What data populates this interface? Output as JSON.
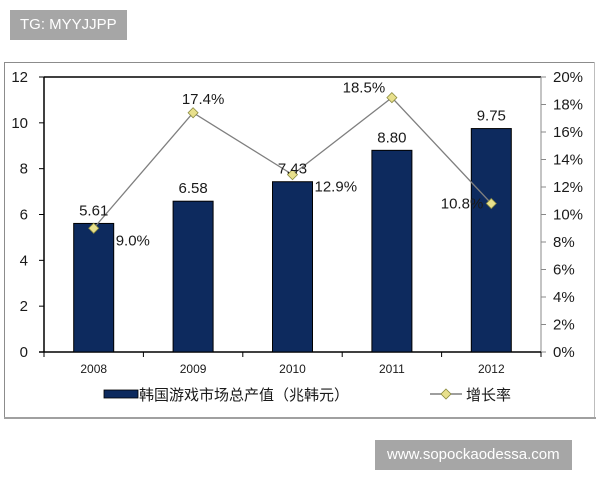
{
  "watermarks": {
    "top": "TG: MYYJJPP",
    "bottom": "www.sopockaodessa.com"
  },
  "colors": {
    "bar": "#0d2a5e",
    "bar_border": "#000000",
    "line": "#7f7f7f",
    "marker": "#e8e08c",
    "marker_border": "#8a8a40",
    "badge_bg": "#a6a6a6"
  },
  "chart_data": {
    "type": "bar+line",
    "title": "",
    "categories": [
      "2008",
      "2009",
      "2010",
      "2011",
      "2012"
    ],
    "series": [
      {
        "name": "韩国游戏市场总产值（兆韩元）",
        "type": "bar",
        "axis": "left",
        "values": [
          5.61,
          6.58,
          7.43,
          8.8,
          9.75
        ],
        "labels": [
          "5.61",
          "6.58",
          "7.43",
          "8.80",
          "9.75"
        ]
      },
      {
        "name": "增长率",
        "type": "line",
        "axis": "right",
        "values": [
          9.0,
          17.4,
          12.9,
          18.5,
          10.8
        ],
        "labels": [
          "9.0%",
          "17.4%",
          "12.9%",
          "18.5%",
          "10.8%"
        ]
      }
    ],
    "left_axis": {
      "ylim": [
        0,
        12
      ],
      "ticks": [
        "0",
        "2",
        "4",
        "6",
        "8",
        "10",
        "12"
      ]
    },
    "right_axis": {
      "ylim": [
        0,
        20
      ],
      "ticks": [
        "0%",
        "2%",
        "4%",
        "6%",
        "8%",
        "10%",
        "12%",
        "14%",
        "16%",
        "18%",
        "20%"
      ]
    },
    "xlabel": "",
    "ylabel": "",
    "grid": false,
    "legend_position": "bottom"
  },
  "legend": {
    "bar_label": "韩国游戏市场总产值（兆韩元）",
    "line_label": "增长率"
  }
}
